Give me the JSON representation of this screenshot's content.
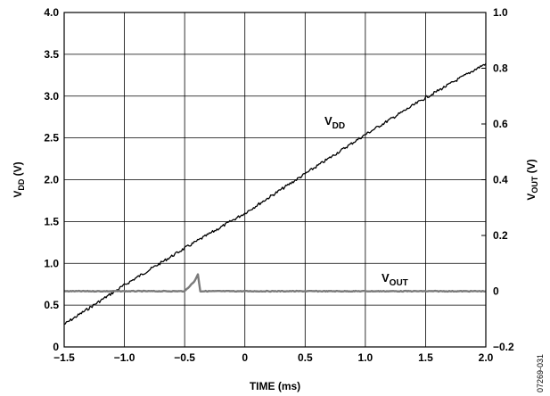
{
  "chart_data": {
    "type": "line",
    "xlabel": "TIME (ms)",
    "ylabel_left": {
      "main": "V",
      "sub": "DD",
      "unit": " (V)"
    },
    "ylabel_right": {
      "main": "V",
      "sub": "OUT",
      "unit": " (V)"
    },
    "xlim": [
      -1.5,
      2.0
    ],
    "ylim_left": [
      0,
      4.0
    ],
    "ylim_right": [
      -0.2,
      1.0
    ],
    "grid": true,
    "x_ticks": [
      "−1.5",
      "−1.0",
      "−0.5",
      "0",
      "0.5",
      "1.0",
      "1.5",
      "2.0"
    ],
    "x_tick_values": [
      -1.5,
      -1.0,
      -0.5,
      0,
      0.5,
      1.0,
      1.5,
      2.0
    ],
    "y_left_ticks": [
      "0",
      "0.5",
      "1.0",
      "1.5",
      "2.0",
      "2.5",
      "3.0",
      "3.5",
      "4.0"
    ],
    "y_left_tick_values": [
      0,
      0.5,
      1.0,
      1.5,
      2.0,
      2.5,
      3.0,
      3.5,
      4.0
    ],
    "y_right_ticks": [
      "−0.2",
      "0",
      "0.2",
      "0.4",
      "0.6",
      "0.8",
      "1.0"
    ],
    "y_right_tick_values": [
      -0.2,
      0,
      0.2,
      0.4,
      0.6,
      0.8,
      1.0
    ],
    "series": [
      {
        "name": "VDD",
        "label": {
          "main": "V",
          "sub": "DD"
        },
        "axis": "left",
        "color": "#000000",
        "x": [
          -1.5,
          -1.0,
          -0.5,
          0,
          0.5,
          1.0,
          1.5,
          2.0
        ],
        "y": [
          0.27,
          0.74,
          1.18,
          1.6,
          2.07,
          2.54,
          2.98,
          3.39
        ]
      },
      {
        "name": "VOUT",
        "label": {
          "main": "V",
          "sub": "OUT"
        },
        "axis": "right",
        "color": "#7a7a7a",
        "x": [
          -1.5,
          -0.5,
          -0.42,
          -0.39,
          -0.37,
          0,
          0.5,
          1.0,
          1.5,
          2.0
        ],
        "y": [
          0.0,
          0.0,
          0.035,
          0.06,
          0.0,
          0.0,
          0.0,
          0.0,
          0.0,
          0.0
        ]
      }
    ],
    "figure_id": "07269-031"
  }
}
